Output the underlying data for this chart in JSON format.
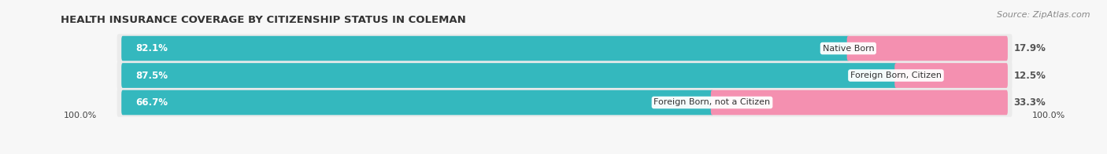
{
  "title": "HEALTH INSURANCE COVERAGE BY CITIZENSHIP STATUS IN COLEMAN",
  "source": "Source: ZipAtlas.com",
  "categories": [
    "Native Born",
    "Foreign Born, Citizen",
    "Foreign Born, not a Citizen"
  ],
  "with_coverage": [
    82.1,
    87.5,
    66.7
  ],
  "without_coverage": [
    17.9,
    12.5,
    33.3
  ],
  "color_with": "#34b8be",
  "color_without": "#f490b0",
  "left_label": "100.0%",
  "right_label": "100.0%",
  "title_fontsize": 9.5,
  "source_fontsize": 8.0,
  "bar_height": 0.62,
  "bg_row_color": "#ebebeb",
  "fig_bg": "#f7f7f7"
}
